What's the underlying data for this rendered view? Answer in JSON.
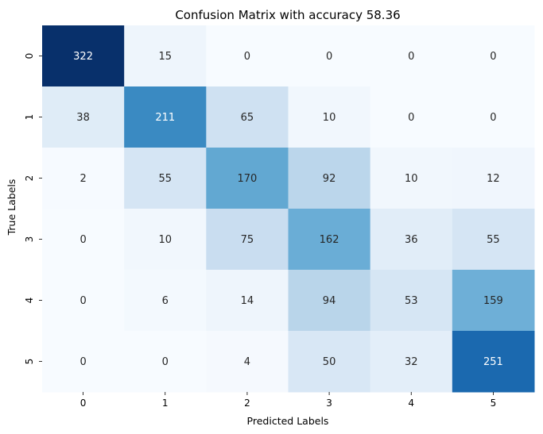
{
  "chart_data": {
    "type": "heatmap",
    "title": "Confusion Matrix with accuracy 58.36",
    "xlabel": "Predicted Labels",
    "ylabel": "True Labels",
    "x_categories": [
      "0",
      "1",
      "2",
      "3",
      "4",
      "5"
    ],
    "y_categories": [
      "0",
      "1",
      "2",
      "3",
      "4",
      "5"
    ],
    "values": [
      [
        322,
        15,
        0,
        0,
        0,
        0
      ],
      [
        38,
        211,
        65,
        10,
        0,
        0
      ],
      [
        2,
        55,
        170,
        92,
        10,
        12
      ],
      [
        0,
        10,
        75,
        162,
        36,
        55
      ],
      [
        0,
        6,
        14,
        94,
        53,
        159
      ],
      [
        0,
        0,
        4,
        50,
        32,
        251
      ]
    ],
    "colormap": "Blues",
    "vmin": 0,
    "vmax": 322,
    "colorbar": false,
    "colors": {
      "low": "#f7fbff",
      "high": "#08306b"
    }
  }
}
